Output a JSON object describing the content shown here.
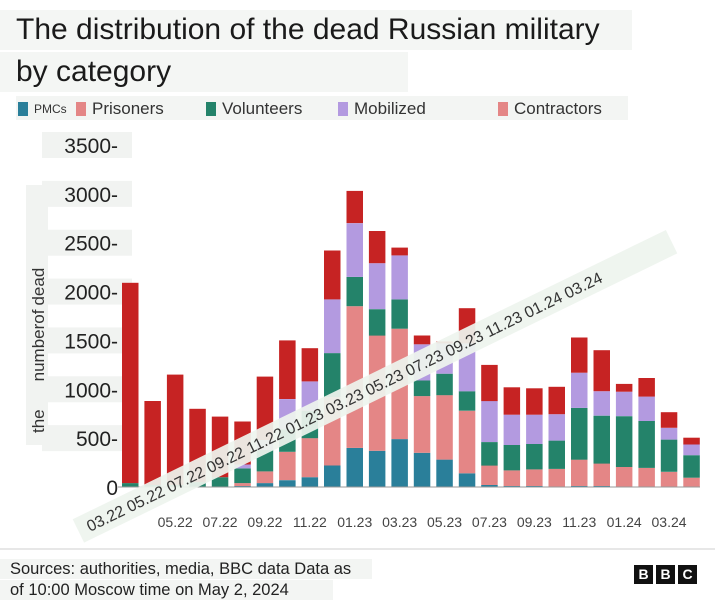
{
  "title_line1": "The distribution of the dead Russian military",
  "title_line2": "by category",
  "legend": [
    {
      "label": "PMCs",
      "color": "#2a7f9a"
    },
    {
      "label": "Prisoners",
      "color": "#e48686"
    },
    {
      "label": "Volunteers",
      "color": "#24836a"
    },
    {
      "label": "Mobilized",
      "color": "#b39ae0"
    },
    {
      "label": "Contractors",
      "color": "#c62323"
    }
  ],
  "sources_line1": "Sources: authorities, media, BBC data Data as",
  "sources_line2": "of 10:00 Moscow time on May 2, 2024",
  "logo_letters": [
    "B",
    "B",
    "C"
  ],
  "chart_data": {
    "type": "bar",
    "stacked": true,
    "title": "The distribution of the dead Russian military by category",
    "ylabel": "the number of dead",
    "ylabel_words": [
      "the",
      "number",
      "of",
      "dead"
    ],
    "ylim": [
      0,
      3500
    ],
    "yticks": [
      0,
      500,
      1000,
      1500,
      2000,
      2500,
      3000,
      3500
    ],
    "ytick_labels": [
      "0",
      "500-",
      "1000-",
      "1500-",
      "2000-",
      "2500-",
      "3000-",
      "3500-"
    ],
    "xtick_labels": [
      "05.22",
      "07.22",
      "09.22",
      "11.22",
      "01.23",
      "03.23",
      "05.23",
      "07.23",
      "09.23",
      "11.23",
      "01.24",
      "03.24"
    ],
    "diagonal_labels": "03.22 05.22 07.22 09.22 11.22 01.23 03.23 05.23 07.23 09.23 11.23 01.24 03.24",
    "categories": [
      "03.22",
      "04.22",
      "05.22",
      "06.22",
      "07.22",
      "08.22",
      "09.22",
      "10.22",
      "11.22",
      "12.22",
      "01.23",
      "02.23",
      "03.23",
      "04.23",
      "05.23",
      "06.23",
      "07.23",
      "08.23",
      "09.23",
      "10.23",
      "11.23",
      "12.23",
      "01.24",
      "02.24",
      "03.24",
      "04.24"
    ],
    "series": [
      {
        "name": "PMCs",
        "color": "#2a7f9a",
        "values": [
          0,
          0,
          0,
          0,
          0,
          10,
          40,
          70,
          100,
          220,
          400,
          370,
          490,
          350,
          280,
          140,
          20,
          10,
          10,
          5,
          10,
          10,
          5,
          5,
          5,
          5
        ]
      },
      {
        "name": "Prisoners",
        "color": "#e48686",
        "values": [
          0,
          0,
          0,
          0,
          0,
          30,
          120,
          290,
          400,
          700,
          1450,
          1180,
          1130,
          580,
          660,
          640,
          200,
          160,
          170,
          180,
          270,
          230,
          200,
          190,
          150,
          90
        ]
      },
      {
        "name": "Volunteers",
        "color": "#24836a",
        "values": [
          40,
          20,
          20,
          50,
          100,
          150,
          220,
          230,
          280,
          450,
          300,
          270,
          300,
          160,
          220,
          200,
          240,
          260,
          260,
          290,
          530,
          490,
          520,
          480,
          330,
          230
        ]
      },
      {
        "name": "Mobilized",
        "color": "#b39ae0",
        "values": [
          0,
          0,
          0,
          0,
          0,
          40,
          100,
          310,
          300,
          550,
          550,
          470,
          450,
          370,
          310,
          490,
          420,
          310,
          300,
          270,
          360,
          250,
          250,
          250,
          120,
          110
        ]
      },
      {
        "name": "Contractors",
        "color": "#c62323",
        "values": [
          2050,
          860,
          1130,
          750,
          620,
          440,
          650,
          600,
          340,
          500,
          330,
          330,
          80,
          90,
          20,
          360,
          370,
          280,
          270,
          280,
          360,
          420,
          80,
          190,
          160,
          70
        ]
      }
    ]
  }
}
